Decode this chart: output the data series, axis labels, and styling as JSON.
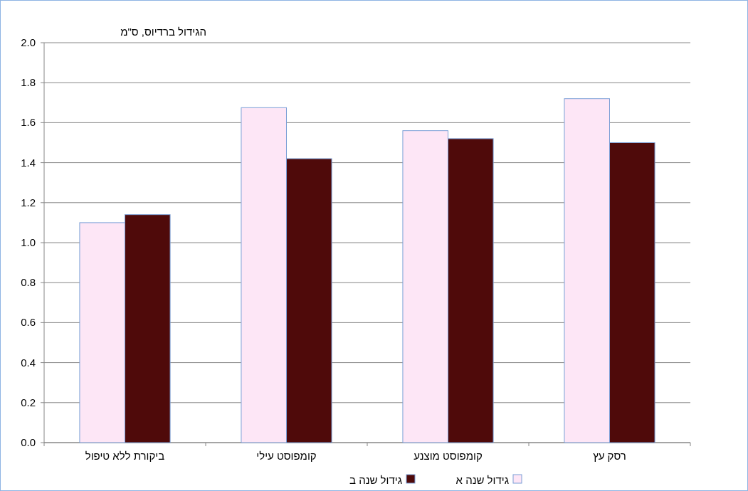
{
  "chart_data": {
    "type": "bar",
    "ylabel": "הגידול ברדיוס, ס\"מ",
    "categories": [
      "ביקורת ללא טיפול",
      "קומפוסט עילי",
      "קומפוסט מוצנע",
      "רסק עץ"
    ],
    "series": [
      {
        "name": "גידול שנה א",
        "color": "#fde6f6",
        "values": [
          1.1,
          1.675,
          1.56,
          1.72
        ]
      },
      {
        "name": "גידול שנה ב",
        "color": "#4f0a0a",
        "values": [
          1.14,
          1.42,
          1.52,
          1.5
        ]
      }
    ],
    "ylim": [
      0,
      2.0
    ],
    "yticks": [
      {
        "value": 0,
        "label": "0.0"
      },
      {
        "value": 0.2,
        "label": "0.2"
      },
      {
        "value": 0.4,
        "label": "0.4"
      },
      {
        "value": 0.6,
        "label": "0.6"
      },
      {
        "value": 0.8,
        "label": "0.8"
      },
      {
        "value": 1.0,
        "label": "1.0"
      },
      {
        "value": 1.2,
        "label": "1.2"
      },
      {
        "value": 1.4,
        "label": "1.4"
      },
      {
        "value": 1.6,
        "label": "1.6"
      },
      {
        "value": 1.8,
        "label": "1.8"
      },
      {
        "value": 2.0,
        "label": "2.0"
      }
    ],
    "grid": "y",
    "legend": "bottom"
  }
}
